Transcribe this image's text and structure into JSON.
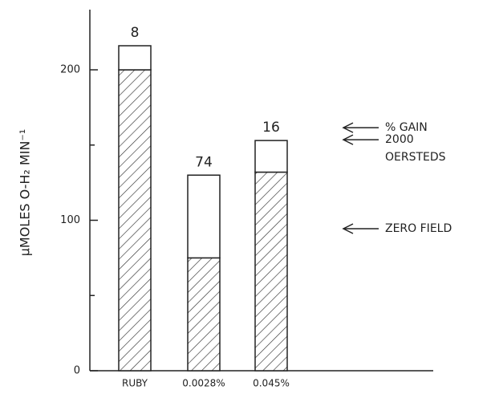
{
  "chart_data": {
    "type": "stacked-bar",
    "y_label": "μMOLES O-H₂ MIN⁻¹",
    "categories": [
      "RUBY",
      "0.0028%",
      "0.045%"
    ],
    "series": [
      {
        "name": "ZERO FIELD",
        "values": [
          200,
          75,
          132
        ],
        "pattern": "hatch"
      },
      {
        "name": "2000 OERSTEDS",
        "values": [
          16,
          55,
          21
        ],
        "pattern": "white"
      }
    ],
    "gain_label": "% GAIN",
    "gain_percent": [
      8,
      74,
      16
    ],
    "ylim": [
      0,
      240
    ],
    "yticks": [
      0,
      100,
      200
    ],
    "yminor_ticks": [
      50,
      150
    ]
  }
}
